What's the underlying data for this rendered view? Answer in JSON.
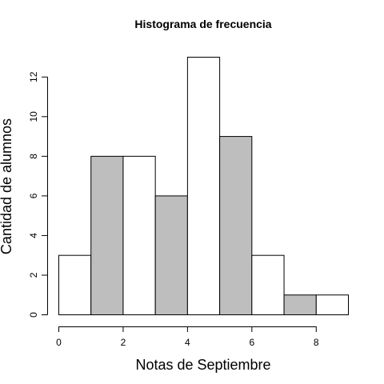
{
  "chart_data": {
    "type": "bar",
    "title": "Histograma de frecuencia",
    "xlabel": "Notas de Septiembre",
    "ylabel": "Cantidad de alumnos",
    "bins": [
      {
        "start": 0,
        "end": 1,
        "value": 3
      },
      {
        "start": 1,
        "end": 2,
        "value": 8
      },
      {
        "start": 2,
        "end": 3,
        "value": 8
      },
      {
        "start": 3,
        "end": 4,
        "value": 6
      },
      {
        "start": 4,
        "end": 5,
        "value": 13
      },
      {
        "start": 5,
        "end": 6,
        "value": 9
      },
      {
        "start": 6,
        "end": 7,
        "value": 3
      },
      {
        "start": 7,
        "end": 8,
        "value": 1
      },
      {
        "start": 8,
        "end": 9,
        "value": 1
      }
    ],
    "fill_colors": [
      "#ffffff",
      "#bebebe"
    ],
    "stroke_color": "#000000",
    "xlim": [
      0,
      9
    ],
    "ylim": [
      0,
      13
    ],
    "xticks": [
      0,
      2,
      4,
      6,
      8
    ],
    "yticks": [
      0,
      2,
      4,
      6,
      8,
      10,
      12
    ],
    "grid": false,
    "legend": "none"
  }
}
